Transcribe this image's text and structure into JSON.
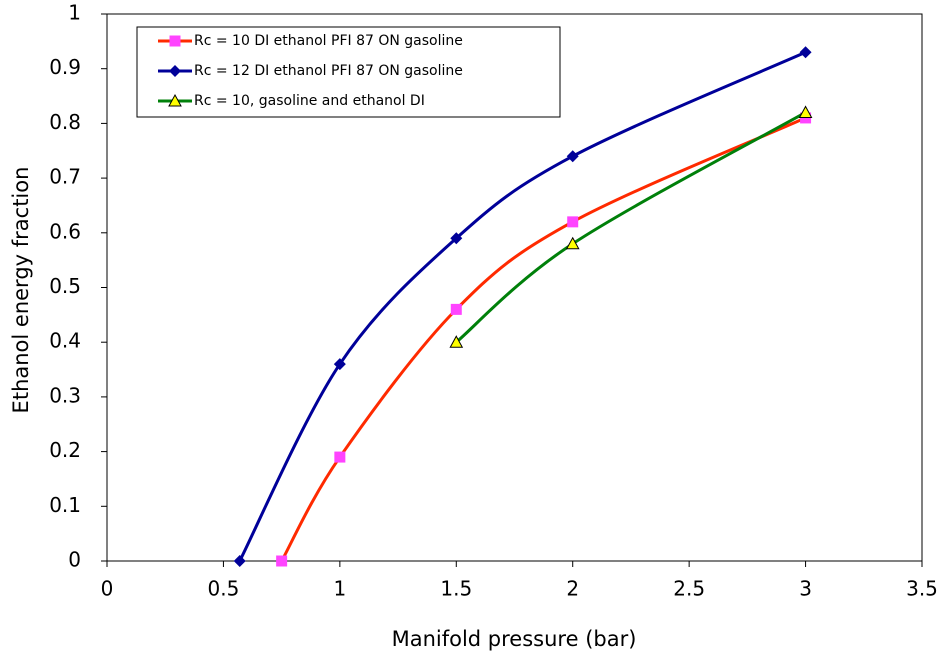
{
  "chart_data": {
    "type": "line",
    "x_label": "Manifold pressure (bar)",
    "y_label": "Ethanol energy fraction",
    "xlim": [
      0,
      3.5
    ],
    "xticks": [
      0,
      0.5,
      1,
      1.5,
      2,
      2.5,
      3,
      3.5
    ],
    "ylim": [
      0,
      1
    ],
    "yticks": [
      0,
      0.1,
      0.2,
      0.3,
      0.4,
      0.5,
      0.6,
      0.7,
      0.8,
      0.9,
      1
    ],
    "grid": false,
    "smooth": true,
    "legend": "top-left",
    "series": [
      {
        "name": "Rc = 10 DI ethanol PFI 87 ON gasoline",
        "color": "#ff2a00",
        "marker": "square",
        "marker_color": "#ff44ff",
        "x": [
          0.75,
          1,
          1.5,
          2,
          3
        ],
        "values": [
          0,
          0.19,
          0.46,
          0.62,
          0.81
        ]
      },
      {
        "name": "Rc = 12 DI ethanol PFI 87 ON gasoline",
        "color": "#000099",
        "marker": "diamond",
        "marker_color": "#000099",
        "x": [
          0.57,
          1,
          1.5,
          2,
          3
        ],
        "values": [
          0,
          0.36,
          0.59,
          0.74,
          0.93
        ]
      },
      {
        "name": "Rc = 10, gasoline and ethanol DI",
        "color": "#00800a",
        "marker": "triangle",
        "marker_color": "#ffff00",
        "x": [
          1.5,
          2,
          3
        ],
        "values": [
          0.4,
          0.58,
          0.82
        ]
      }
    ]
  }
}
